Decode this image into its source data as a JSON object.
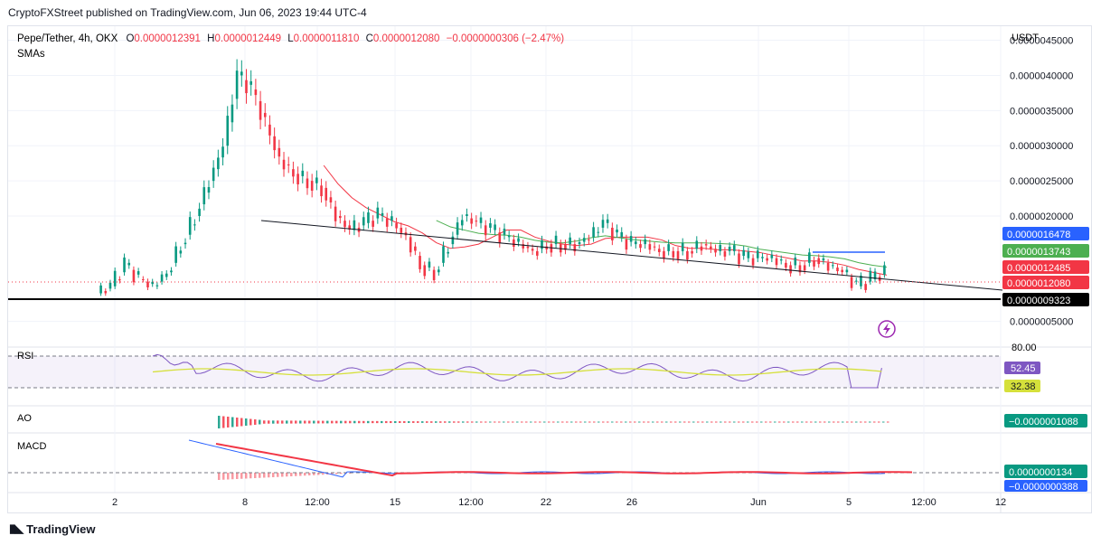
{
  "header": {
    "published": "CryptoFXStreet published on TradingView.com, Jun 06, 2023 19:44 UTC-4"
  },
  "footer": {
    "brand": "TradingView",
    "logo": "tradingview-logo"
  },
  "legend": {
    "symbol": "Pepe/Tether, 4h, OKX",
    "o_label": "O",
    "o_value": "0.0000012391",
    "h_label": "H",
    "h_value": "0.0000012449",
    "l_label": "L",
    "l_value": "0.0000011810",
    "c_label": "C",
    "c_value": "0.0000012080",
    "change": "−0.0000000306 (−2.47%)",
    "indicator": "SMAs"
  },
  "colors": {
    "up": "#089981",
    "down": "#f23645",
    "sma_red": "#f23645",
    "sma_green": "#4caf50",
    "sma_blue": "#2962ff",
    "rsi": "#7e57c2",
    "rsi_ma": "#d5e03b",
    "macd": "#2962ff",
    "signal": "#f23645",
    "trendline": "#131722",
    "support": "#000000"
  },
  "chart_data": [
    {
      "type": "candlestick",
      "unit": "USDT",
      "x_ticks": [
        "2",
        "8",
        "12:00",
        "15",
        "12:00",
        "22",
        "26",
        "Jun",
        "5",
        "12:00",
        "12"
      ],
      "y_ticks": [
        "0.0000045000",
        "0.0000040000",
        "0.0000035000",
        "0.0000030000",
        "0.0000025000",
        "0.0000020000",
        "0.0000005000"
      ],
      "ylim": [
        2e-07,
        4.7e-06
      ],
      "ohlc": {
        "open": 1.2391e-06,
        "high": 1.2449e-06,
        "low": 1.181e-06,
        "close": 1.208e-06,
        "change": -3.06e-08,
        "change_pct": -2.47
      },
      "series_shape": [
        9e-07,
        1e-06,
        1.3e-06,
        1.1e-06,
        1e-06,
        1.2e-06,
        1.6e-06,
        2e-06,
        2.5e-06,
        3e-06,
        4e-06,
        3.8e-06,
        3.3e-06,
        2.8e-06,
        2.6e-06,
        2.5e-06,
        2.4e-06,
        2e-06,
        1.8e-06,
        1.9e-06,
        2e-06,
        1.9e-06,
        1.7e-06,
        1.3e-06,
        1.2e-06,
        1.6e-06,
        2e-06,
        1.9e-06,
        1.8e-06,
        1.7e-06,
        1.6e-06,
        1.5e-06,
        1.6e-06,
        1.6e-06,
        1.6e-06,
        1.7e-06,
        1.9e-06,
        1.7e-06,
        1.6e-06,
        1.6e-06,
        1.5e-06,
        1.5e-06,
        1.5e-06,
        1.6e-06,
        1.5e-06,
        1.5e-06,
        1.4e-06,
        1.4e-06,
        1.4e-06,
        1.3e-06,
        1.3e-06,
        1.4e-06,
        1.3e-06,
        1.2e-06,
        1e-06,
        1.1e-06,
        1.2e-06
      ],
      "price_labels": [
        {
          "name": "sma-blue-label",
          "value": "0.0000016478",
          "price": 1.6478e-06,
          "color": "#2962ff"
        },
        {
          "name": "sma-green-label",
          "value": "0.0000013743",
          "price": 1.3743e-06,
          "color": "#4caf50"
        },
        {
          "name": "sma-red-label",
          "value": "0.0000012485",
          "price": 1.2485e-06,
          "color": "#f23645"
        },
        {
          "name": "last-price-label",
          "value": "0.0000012080",
          "price": 1.208e-06,
          "color": "#f23645"
        },
        {
          "name": "support-label",
          "value": "0.0000009323",
          "price": 9.323e-07,
          "color": "#000000"
        }
      ]
    },
    {
      "type": "line",
      "name": "RSI",
      "ylim": [
        0,
        100
      ],
      "levels": [
        70,
        30
      ],
      "top_tick": "80.00",
      "values_label": [
        "52.45",
        "32.38"
      ]
    },
    {
      "type": "bar",
      "name": "AO",
      "value_label": "−0.0000001088"
    },
    {
      "type": "line",
      "name": "MACD",
      "value_labels": [
        "0.0000000134",
        "−0.0000000388"
      ]
    }
  ]
}
